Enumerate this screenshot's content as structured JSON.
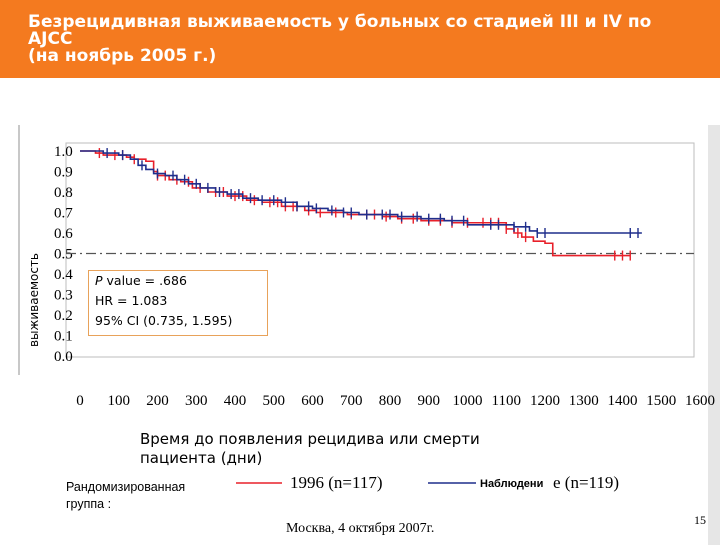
{
  "header": {
    "title": "Безрецидивная выживаемость у больных со стадией III и IV по\nAJCC\n(на ноябрь 2005 г.)",
    "background": "#f47a1f"
  },
  "chart_data": {
    "type": "line",
    "subtype": "kaplan-meier",
    "ylabel": "выживаемость",
    "xlabel": "Время до появления рецидива или смерти\nпациента (дни)",
    "y_ticks": [
      "1.0",
      "0.9",
      "0.8",
      "0.7",
      "0.6",
      "0.5",
      "0.4",
      "0.3",
      "0.2",
      "0.1",
      "0.0"
    ],
    "x_ticks": [
      "0",
      "100",
      "200",
      "300",
      "400",
      "500",
      "600",
      "700",
      "800",
      "900",
      "1000",
      "1100",
      "1200",
      "1300",
      "1400",
      "1500",
      "1600"
    ],
    "xlim": [
      0,
      1600
    ],
    "ylim": [
      0,
      1.0
    ],
    "reference_line_y": 0.5,
    "series": [
      {
        "name": "1996 (n=117)",
        "color": "#e8202a",
        "points": [
          [
            0,
            1.0
          ],
          [
            40,
            0.99
          ],
          [
            60,
            0.98
          ],
          [
            120,
            0.97
          ],
          [
            140,
            0.96
          ],
          [
            170,
            0.95
          ],
          [
            190,
            0.9
          ],
          [
            200,
            0.88
          ],
          [
            230,
            0.86
          ],
          [
            260,
            0.85
          ],
          [
            290,
            0.82
          ],
          [
            330,
            0.8
          ],
          [
            380,
            0.78
          ],
          [
            430,
            0.76
          ],
          [
            470,
            0.75
          ],
          [
            520,
            0.73
          ],
          [
            580,
            0.71
          ],
          [
            610,
            0.7
          ],
          [
            690,
            0.69
          ],
          [
            780,
            0.68
          ],
          [
            820,
            0.67
          ],
          [
            880,
            0.66
          ],
          [
            960,
            0.65
          ],
          [
            1100,
            0.62
          ],
          [
            1120,
            0.6
          ],
          [
            1140,
            0.58
          ],
          [
            1170,
            0.56
          ],
          [
            1200,
            0.55
          ],
          [
            1220,
            0.49
          ],
          [
            1330,
            0.49
          ],
          [
            1420,
            0.49
          ]
        ],
        "censor_times": [
          50,
          90,
          110,
          140,
          200,
          220,
          250,
          280,
          310,
          350,
          370,
          400,
          420,
          450,
          490,
          510,
          530,
          550,
          560,
          590,
          620,
          660,
          700,
          740,
          760,
          790,
          830,
          860,
          900,
          930,
          960,
          1000,
          1040,
          1060,
          1080,
          1100,
          1130,
          1150,
          1380,
          1400,
          1420
        ]
      },
      {
        "name": "Наблюдение (n=119)",
        "color": "#1f2e8c",
        "points": [
          [
            0,
            1.0
          ],
          [
            60,
            0.99
          ],
          [
            100,
            0.98
          ],
          [
            130,
            0.96
          ],
          [
            150,
            0.93
          ],
          [
            170,
            0.91
          ],
          [
            190,
            0.89
          ],
          [
            220,
            0.88
          ],
          [
            250,
            0.86
          ],
          [
            280,
            0.84
          ],
          [
            310,
            0.82
          ],
          [
            350,
            0.8
          ],
          [
            380,
            0.79
          ],
          [
            420,
            0.77
          ],
          [
            460,
            0.76
          ],
          [
            500,
            0.76
          ],
          [
            520,
            0.75
          ],
          [
            560,
            0.73
          ],
          [
            600,
            0.72
          ],
          [
            640,
            0.71
          ],
          [
            680,
            0.7
          ],
          [
            720,
            0.69
          ],
          [
            760,
            0.69
          ],
          [
            820,
            0.68
          ],
          [
            880,
            0.67
          ],
          [
            940,
            0.66
          ],
          [
            980,
            0.66
          ],
          [
            1000,
            0.64
          ],
          [
            1100,
            0.64
          ],
          [
            1120,
            0.63
          ],
          [
            1160,
            0.61
          ],
          [
            1180,
            0.6
          ],
          [
            1450,
            0.6
          ]
        ],
        "censor_times": [
          70,
          110,
          160,
          200,
          240,
          270,
          300,
          330,
          360,
          390,
          410,
          440,
          470,
          500,
          530,
          560,
          590,
          610,
          650,
          680,
          700,
          740,
          780,
          800,
          830,
          870,
          900,
          930,
          960,
          990,
          1060,
          1080,
          1120,
          1150,
          1180,
          1200,
          1420,
          1440
        ]
      }
    ]
  },
  "stats": {
    "p_label": "P",
    "p_value": " value = .686",
    "hr": "HR = 1.083",
    "ci": "95% CI (0.735, 1.595)"
  },
  "legend": {
    "group_label": "Рандомизированная\nгруппа :",
    "series1_text": "1996 (n=117)",
    "series2_label": "Наблюдени",
    "series2_text": "e (n=119)"
  },
  "footer": {
    "text": "Москва, 4 октября 2007г.",
    "page_number": "15"
  }
}
